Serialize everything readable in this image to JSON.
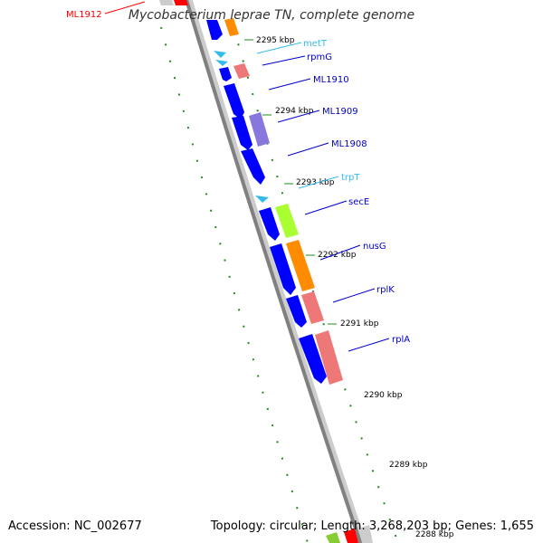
{
  "title": "Mycobacterium leprae TN, complete genome",
  "accession": "Accession: NC_002677",
  "summary": "Topology: circular; Length: 3,268,203 bp; Genes: 1,655",
  "colors": {
    "backbone": "#808080",
    "forward_cds": "#0000ff",
    "tick": "#228b22",
    "label_line": "#0000cc",
    "trna": "#33bbee",
    "rrna_red": "#ff0000",
    "orange": "#ff8c00",
    "salmon": "#ee7777",
    "purple": "#8877dd",
    "lime": "#aaff33"
  },
  "ticks": [
    {
      "label": "2295 kbp"
    },
    {
      "label": "2294 kbp"
    },
    {
      "label": "2293 kbp"
    },
    {
      "label": "2292 kbp"
    },
    {
      "label": "2291 kbp"
    },
    {
      "label": "2290 kbp"
    },
    {
      "label": "2289 kbp"
    },
    {
      "label": "2288 kbp"
    }
  ],
  "genes": [
    {
      "name": "ML1912",
      "color": "#ff0000"
    },
    {
      "name": "metT",
      "color": "#33bbee"
    },
    {
      "name": "rpmG",
      "color": "#0000cc"
    },
    {
      "name": "ML1910",
      "color": "#0000cc"
    },
    {
      "name": "ML1909",
      "color": "#0000cc"
    },
    {
      "name": "ML1908",
      "color": "#0000cc"
    },
    {
      "name": "trpT",
      "color": "#33bbee"
    },
    {
      "name": "secE",
      "color": "#0000cc"
    },
    {
      "name": "nusG",
      "color": "#0000cc"
    },
    {
      "name": "rplK",
      "color": "#0000cc"
    },
    {
      "name": "rplA",
      "color": "#0000cc"
    }
  ]
}
